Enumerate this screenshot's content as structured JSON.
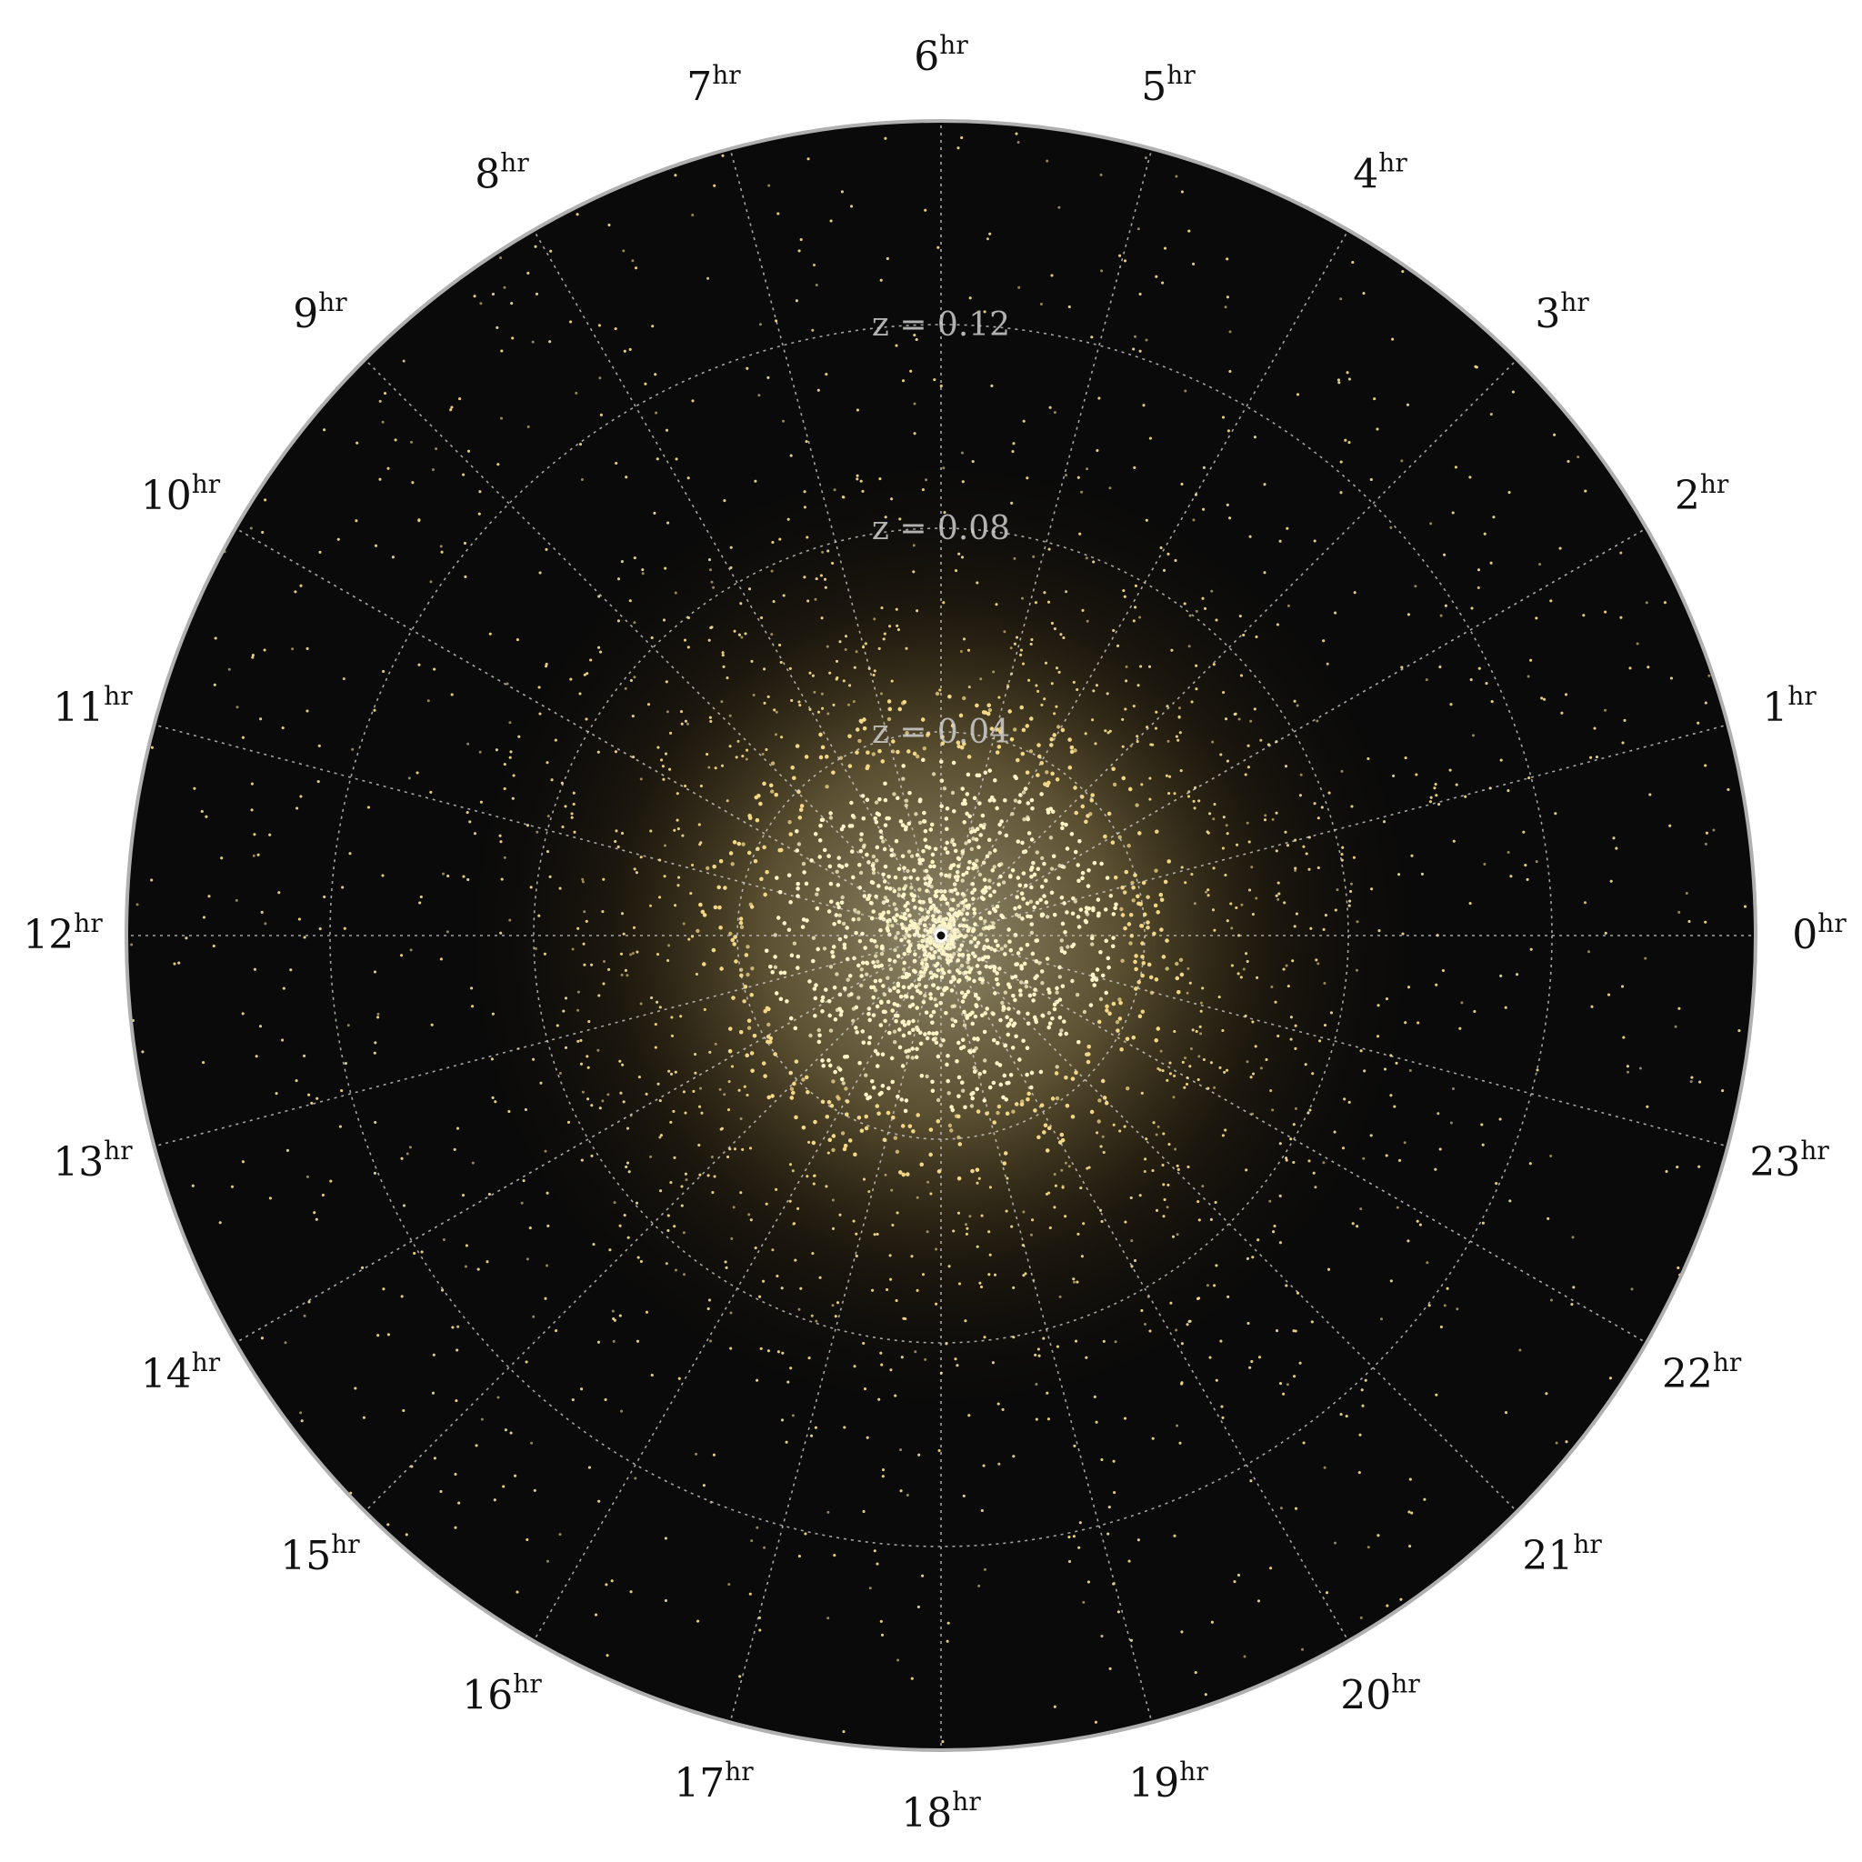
{
  "chart_data": {
    "type": "scatter",
    "projection": "polar",
    "background_color": "#0a0a0a",
    "outer_ring_color": "#b0b0b0",
    "point_color": "#f4d98a",
    "core_color": "#fff6c8",
    "grid": true,
    "angular_axis": {
      "unit": "hr",
      "start": 0,
      "direction": "counterclockwise",
      "zero_position": "right",
      "ticks": [
        {
          "value": 0,
          "label": "0",
          "unit": "hr"
        },
        {
          "value": 1,
          "label": "1",
          "unit": "hr"
        },
        {
          "value": 2,
          "label": "2",
          "unit": "hr"
        },
        {
          "value": 3,
          "label": "3",
          "unit": "hr"
        },
        {
          "value": 4,
          "label": "4",
          "unit": "hr"
        },
        {
          "value": 5,
          "label": "5",
          "unit": "hr"
        },
        {
          "value": 6,
          "label": "6",
          "unit": "hr"
        },
        {
          "value": 7,
          "label": "7",
          "unit": "hr"
        },
        {
          "value": 8,
          "label": "8",
          "unit": "hr"
        },
        {
          "value": 9,
          "label": "9",
          "unit": "hr"
        },
        {
          "value": 10,
          "label": "10",
          "unit": "hr"
        },
        {
          "value": 11,
          "label": "11",
          "unit": "hr"
        },
        {
          "value": 12,
          "label": "12",
          "unit": "hr"
        },
        {
          "value": 13,
          "label": "13",
          "unit": "hr"
        },
        {
          "value": 14,
          "label": "14",
          "unit": "hr"
        },
        {
          "value": 15,
          "label": "15",
          "unit": "hr"
        },
        {
          "value": 16,
          "label": "16",
          "unit": "hr"
        },
        {
          "value": 17,
          "label": "17",
          "unit": "hr"
        },
        {
          "value": 18,
          "label": "18",
          "unit": "hr"
        },
        {
          "value": 19,
          "label": "19",
          "unit": "hr"
        },
        {
          "value": 20,
          "label": "20",
          "unit": "hr"
        },
        {
          "value": 21,
          "label": "21",
          "unit": "hr"
        },
        {
          "value": 22,
          "label": "22",
          "unit": "hr"
        },
        {
          "value": 23,
          "label": "23",
          "unit": "hr"
        }
      ]
    },
    "radial_axis": {
      "label": "z",
      "range": [
        0,
        0.16
      ],
      "rings": [
        {
          "value": 0.04,
          "label": "z = 0.04"
        },
        {
          "value": 0.08,
          "label": "z = 0.08"
        },
        {
          "value": 0.12,
          "label": "z = 0.12"
        }
      ]
    },
    "density_profile": {
      "description_of_distribution": "dense filamentary core within z < 0.06, sparse beyond z = 0.1",
      "core_z": 0.06,
      "halo_z": 0.16
    }
  }
}
